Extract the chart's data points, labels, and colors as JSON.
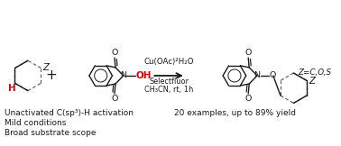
{
  "bg_color": "#ffffff",
  "bond_color": "#1a1a1a",
  "red_color": "#dd0000",
  "dash_color": "#666666",
  "bottom_left_lines": [
    "Unactivated C(sp³)-H activation",
    "Mild conditions",
    "Broad substrate scope"
  ],
  "bottom_right_text": "20 examples, up to 89% yield",
  "reagent_line1": "Cu(OAc)²H₂O",
  "reagent_line2": "Selectfluor",
  "reagent_line3": "CH₃CN, rt, 1h",
  "z_label": "Z=C,O,S",
  "font_size_bottom": 6.5,
  "font_size_reagent": 6.2,
  "font_size_atom": 7.5,
  "font_size_atom_sm": 6.8
}
